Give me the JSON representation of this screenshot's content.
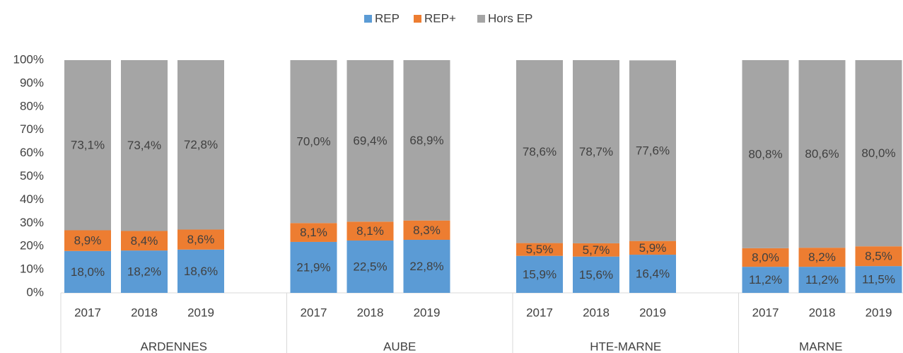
{
  "chart_data": {
    "type": "stacked_bar",
    "categories": [
      "2017",
      "2018",
      "2019",
      "2017",
      "2018",
      "2019",
      "2017",
      "2018",
      "2019",
      "2017",
      "2018",
      "2019"
    ],
    "groups": [
      "ARDENNES",
      "AUBE",
      "HTE-MARNE",
      "MARNE"
    ],
    "series": [
      {
        "name": "REP",
        "color": "#5b9bd5",
        "values": [
          18.0,
          18.2,
          18.6,
          21.9,
          22.5,
          22.8,
          15.9,
          15.6,
          16.4,
          11.2,
          11.2,
          11.5
        ],
        "value_labels": [
          "18,0%",
          "18,2%",
          "18,6%",
          "21,9%",
          "22,5%",
          "22,8%",
          "15,9%",
          "15,6%",
          "16,4%",
          "11,2%",
          "11,2%",
          "11,5%"
        ]
      },
      {
        "name": "REP+",
        "color": "#ed7d31",
        "values": [
          8.9,
          8.4,
          8.6,
          8.1,
          8.1,
          8.3,
          5.5,
          5.7,
          5.9,
          8.0,
          8.2,
          8.5
        ],
        "value_labels": [
          "8,9%",
          "8,4%",
          "8,6%",
          "8,1%",
          "8,1%",
          "8,3%",
          "5,5%",
          "5,7%",
          "5,9%",
          "8,0%",
          "8,2%",
          "8,5%"
        ]
      },
      {
        "name": "Hors EP",
        "color": "#a5a5a5",
        "values": [
          73.1,
          73.4,
          72.8,
          70.0,
          69.4,
          68.9,
          78.6,
          78.7,
          77.6,
          80.8,
          80.6,
          80.0
        ],
        "value_labels": [
          "73,1%",
          "73,4%",
          "72,8%",
          "70,0%",
          "69,4%",
          "68,9%",
          "78,6%",
          "78,7%",
          "77,6%",
          "80,8%",
          "80,6%",
          "80,0%"
        ]
      }
    ],
    "ylim": [
      0,
      100
    ],
    "yticks": [
      {
        "value": 0,
        "label": "0%"
      },
      {
        "value": 10,
        "label": "10%"
      },
      {
        "value": 20,
        "label": "20%"
      },
      {
        "value": 30,
        "label": "30%"
      },
      {
        "value": 40,
        "label": "40%"
      },
      {
        "value": 50,
        "label": "50%"
      },
      {
        "value": 60,
        "label": "60%"
      },
      {
        "value": 70,
        "label": "70%"
      },
      {
        "value": 80,
        "label": "80%"
      },
      {
        "value": 90,
        "label": "90%"
      },
      {
        "value": 100,
        "label": "100%"
      }
    ],
    "legend": "top"
  }
}
